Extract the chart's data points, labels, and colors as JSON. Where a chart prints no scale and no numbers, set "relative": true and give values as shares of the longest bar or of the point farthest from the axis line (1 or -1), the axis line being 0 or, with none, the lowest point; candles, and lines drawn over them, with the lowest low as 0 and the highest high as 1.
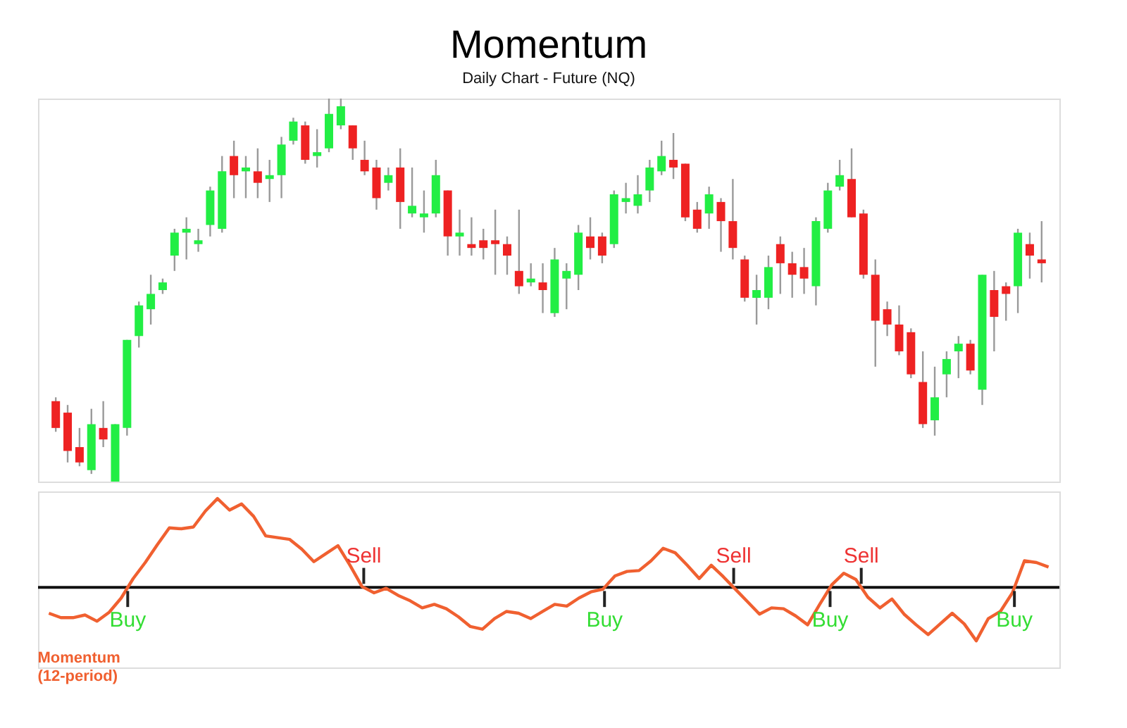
{
  "chart_data": [
    {
      "type": "candlestick",
      "title": "Momentum",
      "subtitle": "Daily Chart - Future (NQ)",
      "relative": true,
      "categories": [
        null,
        null,
        null,
        null,
        null,
        null,
        null,
        null,
        null,
        null,
        null,
        null,
        null,
        null,
        null,
        null,
        null,
        null,
        null,
        null,
        null,
        null,
        null,
        null,
        null,
        null,
        null,
        null,
        null,
        null,
        null,
        null,
        null,
        null,
        null,
        null,
        null,
        null,
        null,
        null,
        null,
        null,
        null,
        null,
        null,
        null,
        null,
        null,
        null,
        null,
        null,
        null,
        null,
        null,
        null,
        null,
        null,
        null,
        null,
        null,
        null,
        null,
        null,
        null,
        null,
        null,
        null,
        null,
        null,
        null,
        null,
        null,
        null,
        null,
        null,
        null,
        null,
        null,
        null,
        null,
        null,
        null,
        null,
        null
      ],
      "ohlc": [
        [
          0.21,
          0.22,
          0.13,
          0.14
        ],
        [
          0.18,
          0.2,
          0.05,
          0.08
        ],
        [
          0.09,
          0.14,
          0.04,
          0.05
        ],
        [
          0.03,
          0.19,
          0.02,
          0.15
        ],
        [
          0.14,
          0.21,
          0.09,
          0.11
        ],
        [
          0.0,
          0.15,
          0.0,
          0.15
        ],
        [
          0.14,
          0.37,
          0.12,
          0.37
        ],
        [
          0.38,
          0.47,
          0.35,
          0.46
        ],
        [
          0.45,
          0.54,
          0.41,
          0.49
        ],
        [
          0.5,
          0.53,
          0.49,
          0.52
        ],
        [
          0.59,
          0.66,
          0.55,
          0.65
        ],
        [
          0.65,
          0.69,
          0.58,
          0.66
        ],
        [
          0.62,
          0.66,
          0.6,
          0.63
        ],
        [
          0.67,
          0.77,
          0.64,
          0.76
        ],
        [
          0.66,
          0.85,
          0.65,
          0.81
        ],
        [
          0.85,
          0.89,
          0.74,
          0.8
        ],
        [
          0.81,
          0.85,
          0.74,
          0.82
        ],
        [
          0.81,
          0.87,
          0.74,
          0.78
        ],
        [
          0.79,
          0.84,
          0.73,
          0.8
        ],
        [
          0.8,
          0.9,
          0.74,
          0.88
        ],
        [
          0.89,
          0.95,
          0.88,
          0.94
        ],
        [
          0.93,
          0.94,
          0.83,
          0.84
        ],
        [
          0.85,
          0.92,
          0.82,
          0.86
        ],
        [
          0.87,
          1.0,
          0.86,
          0.96
        ],
        [
          0.93,
          1.0,
          0.92,
          0.98
        ],
        [
          0.93,
          0.93,
          0.84,
          0.87
        ],
        [
          0.84,
          0.89,
          0.8,
          0.81
        ],
        [
          0.82,
          0.84,
          0.71,
          0.74
        ],
        [
          0.78,
          0.82,
          0.76,
          0.8
        ],
        [
          0.82,
          0.87,
          0.66,
          0.73
        ],
        [
          0.7,
          0.82,
          0.69,
          0.72
        ],
        [
          0.69,
          0.76,
          0.65,
          0.7
        ],
        [
          0.7,
          0.84,
          0.69,
          0.8
        ],
        [
          0.76,
          0.76,
          0.59,
          0.64
        ],
        [
          0.64,
          0.71,
          0.59,
          0.65
        ],
        [
          0.62,
          0.69,
          0.59,
          0.61
        ],
        [
          0.63,
          0.66,
          0.58,
          0.61
        ],
        [
          0.63,
          0.71,
          0.54,
          0.62
        ],
        [
          0.62,
          0.64,
          0.54,
          0.59
        ],
        [
          0.55,
          0.71,
          0.49,
          0.51
        ],
        [
          0.52,
          0.57,
          0.51,
          0.53
        ],
        [
          0.52,
          0.57,
          0.44,
          0.5
        ],
        [
          0.44,
          0.61,
          0.43,
          0.58
        ],
        [
          0.53,
          0.57,
          0.45,
          0.55
        ],
        [
          0.54,
          0.67,
          0.5,
          0.65
        ],
        [
          0.64,
          0.69,
          0.58,
          0.61
        ],
        [
          0.64,
          0.65,
          0.57,
          0.59
        ],
        [
          0.62,
          0.76,
          0.61,
          0.75
        ],
        [
          0.73,
          0.78,
          0.7,
          0.74
        ],
        [
          0.72,
          0.8,
          0.7,
          0.75
        ],
        [
          0.76,
          0.84,
          0.73,
          0.82
        ],
        [
          0.81,
          0.89,
          0.8,
          0.85
        ],
        [
          0.84,
          0.91,
          0.79,
          0.82
        ],
        [
          0.83,
          0.83,
          0.68,
          0.69
        ],
        [
          0.71,
          0.73,
          0.65,
          0.66
        ],
        [
          0.7,
          0.77,
          0.66,
          0.75
        ],
        [
          0.73,
          0.74,
          0.6,
          0.68
        ],
        [
          0.68,
          0.79,
          0.58,
          0.61
        ],
        [
          0.58,
          0.59,
          0.47,
          0.48
        ],
        [
          0.48,
          0.54,
          0.41,
          0.5
        ],
        [
          0.48,
          0.59,
          0.45,
          0.56
        ],
        [
          0.62,
          0.64,
          0.49,
          0.57
        ],
        [
          0.57,
          0.6,
          0.48,
          0.54
        ],
        [
          0.56,
          0.61,
          0.49,
          0.53
        ],
        [
          0.51,
          0.69,
          0.46,
          0.68
        ],
        [
          0.66,
          0.78,
          0.65,
          0.76
        ],
        [
          0.77,
          0.84,
          0.76,
          0.8
        ],
        [
          0.79,
          0.87,
          0.69,
          0.69
        ],
        [
          0.7,
          0.71,
          0.53,
          0.54
        ],
        [
          0.54,
          0.58,
          0.3,
          0.42
        ],
        [
          0.45,
          0.47,
          0.38,
          0.41
        ],
        [
          0.41,
          0.46,
          0.33,
          0.34
        ],
        [
          0.39,
          0.4,
          0.27,
          0.28
        ],
        [
          0.26,
          0.34,
          0.14,
          0.15
        ],
        [
          0.16,
          0.3,
          0.12,
          0.22
        ],
        [
          0.28,
          0.34,
          0.22,
          0.32
        ],
        [
          0.34,
          0.38,
          0.27,
          0.36
        ],
        [
          0.36,
          0.37,
          0.28,
          0.29
        ],
        [
          0.24,
          0.54,
          0.2,
          0.54
        ],
        [
          0.5,
          0.55,
          0.34,
          0.43
        ],
        [
          0.51,
          0.52,
          0.42,
          0.49
        ],
        [
          0.51,
          0.66,
          0.44,
          0.65
        ],
        [
          0.62,
          0.65,
          0.53,
          0.59
        ],
        [
          0.58,
          0.68,
          0.52,
          0.57
        ]
      ],
      "colors": [
        "#ee2222",
        "#ee2222",
        "#ee2222",
        "#22ee44",
        "#ee2222",
        "#22ee44",
        "#22ee44",
        "#22ee44",
        "#22ee44",
        "#22ee44",
        "#22ee44",
        "#22ee44",
        "#22ee44",
        "#22ee44",
        "#22ee44",
        "#ee2222",
        "#22ee44",
        "#ee2222",
        "#22ee44",
        "#22ee44",
        "#22ee44",
        "#ee2222",
        "#22ee44",
        "#22ee44",
        "#22ee44",
        "#ee2222",
        "#ee2222",
        "#ee2222",
        "#22ee44",
        "#ee2222",
        "#22ee44",
        "#22ee44",
        "#22ee44",
        "#ee2222",
        "#22ee44",
        "#ee2222",
        "#ee2222",
        "#ee2222",
        "#ee2222",
        "#ee2222",
        "#22ee44",
        "#ee2222",
        "#22ee44",
        "#22ee44",
        "#22ee44",
        "#ee2222",
        "#ee2222",
        "#22ee44",
        "#22ee44",
        "#22ee44",
        "#22ee44",
        "#22ee44",
        "#ee2222",
        "#ee2222",
        "#ee2222",
        "#22ee44",
        "#ee2222",
        "#ee2222",
        "#ee2222",
        "#22ee44",
        "#22ee44",
        "#ee2222",
        "#ee2222",
        "#ee2222",
        "#22ee44",
        "#22ee44",
        "#22ee44",
        "#ee2222",
        "#ee2222",
        "#ee2222",
        "#ee2222",
        "#ee2222",
        "#ee2222",
        "#ee2222",
        "#22ee44",
        "#22ee44",
        "#22ee44",
        "#ee2222",
        "#22ee44",
        "#ee2222",
        "#ee2222",
        "#22ee44",
        "#ee2222",
        "#ee2222"
      ]
    },
    {
      "type": "line",
      "relative": true,
      "marker": "none",
      "line_style": "solid",
      "categories": [
        null,
        null,
        null,
        null,
        null,
        null,
        null,
        null,
        null,
        null,
        null,
        null,
        null,
        null,
        null,
        null,
        null,
        null,
        null,
        null,
        null,
        null,
        null,
        null,
        null,
        null,
        null,
        null,
        null,
        null,
        null,
        null,
        null,
        null,
        null,
        null,
        null,
        null,
        null,
        null,
        null,
        null,
        null,
        null,
        null,
        null,
        null,
        null,
        null,
        null,
        null,
        null,
        null,
        null,
        null,
        null,
        null,
        null,
        null,
        null,
        null,
        null,
        null,
        null,
        null,
        null,
        null,
        null,
        null,
        null,
        null,
        null,
        null,
        null,
        null,
        null,
        null,
        null,
        null,
        null,
        null,
        null,
        null,
        null
      ],
      "series": [
        {
          "name": "Momentum (12-period)",
          "color": "#f06030",
          "values": [
            -0.29,
            -0.34,
            -0.34,
            -0.31,
            -0.38,
            -0.28,
            -0.12,
            0.1,
            0.28,
            0.48,
            0.67,
            0.66,
            0.68,
            0.86,
            1.0,
            0.87,
            0.94,
            0.8,
            0.58,
            0.56,
            0.54,
            0.43,
            0.29,
            0.38,
            0.47,
            0.25,
            0.01,
            -0.06,
            -0.01,
            -0.09,
            -0.15,
            -0.23,
            -0.19,
            -0.24,
            -0.33,
            -0.44,
            -0.47,
            -0.35,
            -0.27,
            -0.29,
            -0.35,
            -0.27,
            -0.19,
            -0.21,
            -0.12,
            -0.05,
            -0.02,
            0.13,
            0.18,
            0.19,
            0.3,
            0.44,
            0.39,
            0.25,
            0.1,
            0.25,
            0.12,
            -0.02,
            -0.16,
            -0.3,
            -0.23,
            -0.24,
            -0.32,
            -0.42,
            -0.19,
            0.03,
            0.16,
            0.09,
            -0.11,
            -0.23,
            -0.13,
            -0.3,
            -0.42,
            -0.53,
            -0.41,
            -0.29,
            -0.41,
            -0.6,
            -0.35,
            -0.27,
            -0.06,
            0.3,
            0.28,
            0.23
          ]
        }
      ],
      "annotations": [
        "Buy",
        "Sell",
        "Buy",
        "Sell",
        "Buy",
        "Sell",
        "Buy"
      ]
    }
  ]
}
